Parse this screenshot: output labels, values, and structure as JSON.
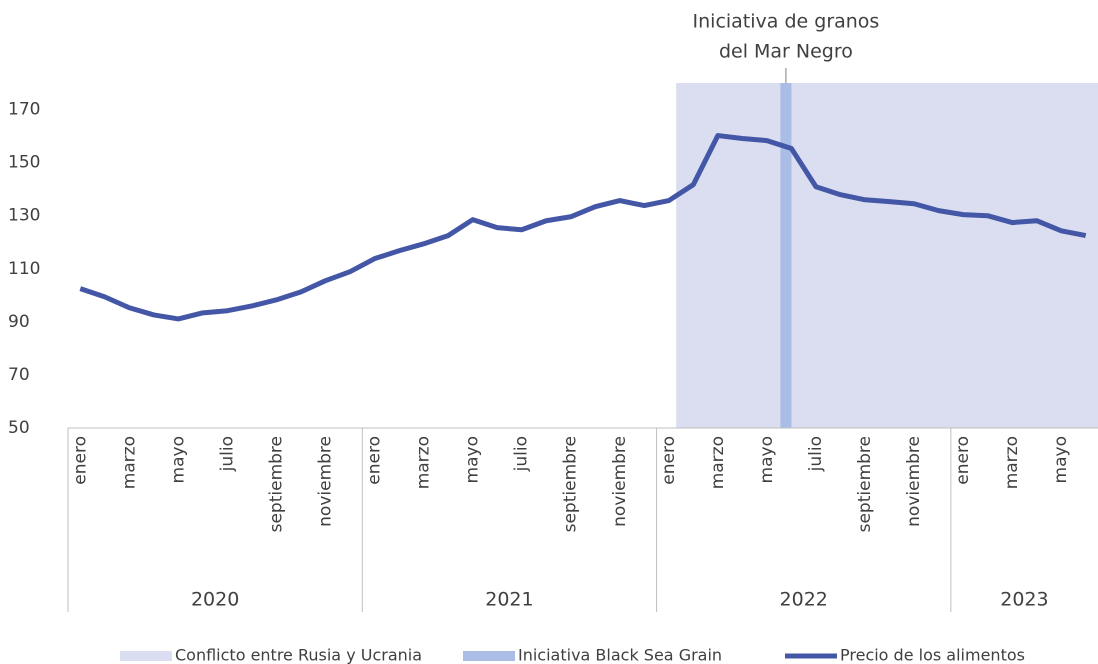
{
  "chart_data": {
    "type": "line",
    "annotation": [
      "Iniciativa de granos",
      "del Mar Negro"
    ],
    "categories": [
      "enero",
      null,
      "marzo",
      null,
      "mayo",
      null,
      "julio",
      null,
      "septiembre",
      null,
      "noviembre",
      null,
      "enero",
      null,
      "marzo",
      null,
      "mayo",
      null,
      "julio",
      null,
      "septiembre",
      null,
      "noviembre",
      null,
      "enero",
      null,
      "marzo",
      null,
      "mayo",
      null,
      "julio",
      null,
      "septiembre",
      null,
      "noviembre",
      null,
      "enero",
      null,
      "marzo",
      null,
      "mayo",
      null
    ],
    "groups": [
      {
        "label": "2020",
        "count": 12
      },
      {
        "label": "2021",
        "count": 12
      },
      {
        "label": "2022",
        "count": 12
      },
      {
        "label": "2023",
        "count": 6
      }
    ],
    "series": [
      {
        "name": "Precio de los alimentos",
        "color": "#4457a6",
        "values": [
          102.5,
          99.4,
          95.3,
          92.6,
          91.1,
          93.4,
          94.2,
          96,
          98.3,
          101.3,
          105.5,
          108.9,
          113.8,
          116.8,
          119.4,
          122.5,
          128.5,
          125.5,
          124.7,
          128.1,
          129.6,
          133.4,
          135.7,
          133.8,
          135.7,
          141.7,
          160.2,
          159.1,
          158.3,
          155.3,
          140.9,
          137.9,
          136,
          135.3,
          134.5,
          131.9,
          130.4,
          130,
          127.4,
          128.1,
          124.3,
          122.5
        ]
      }
    ],
    "regions": [
      {
        "name": "Conflicto entre Rusia y Ucrania",
        "color": "#dadef0",
        "start": 24.8,
        "end": 42
      },
      {
        "name": "Iniciativa Black Sea Grain",
        "color": "#a9bde6",
        "start": 29.05,
        "end": 29.5
      }
    ],
    "ylim": [
      50,
      180
    ],
    "yticks": [
      50,
      70,
      90,
      110,
      130,
      150,
      170
    ]
  }
}
